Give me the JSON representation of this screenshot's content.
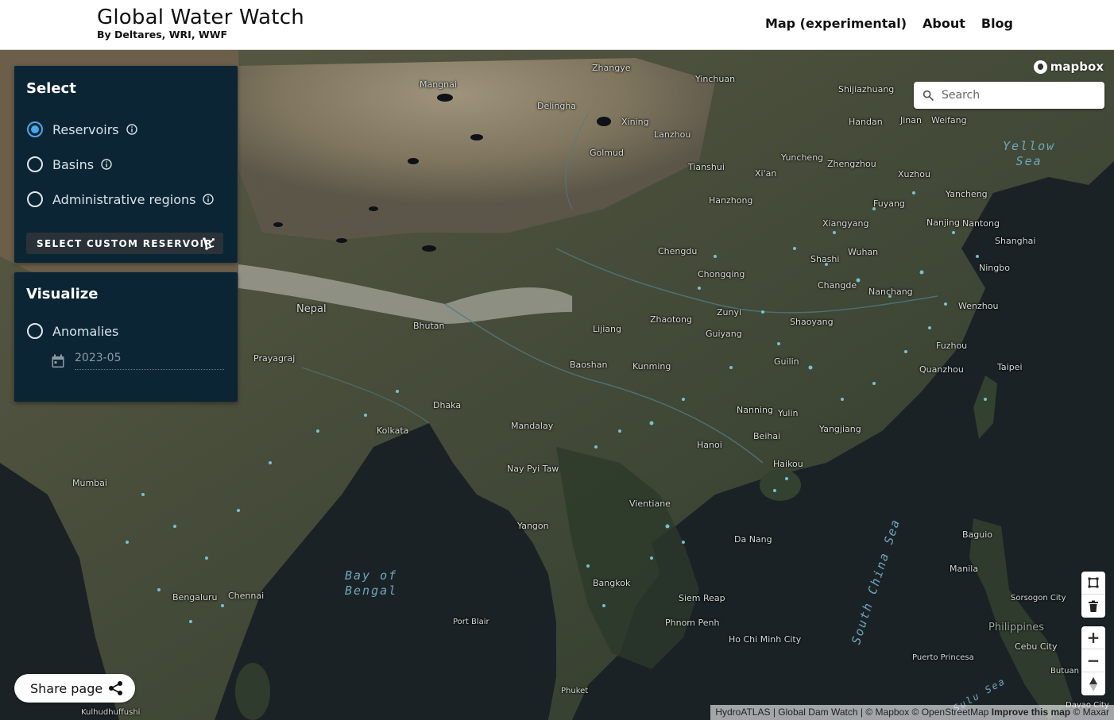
{
  "header": {
    "title": "Global Water Watch",
    "subtitle": "By Deltares, WRI, WWF",
    "nav": [
      {
        "label": "Map (experimental)"
      },
      {
        "label": "About"
      },
      {
        "label": "Blog"
      }
    ]
  },
  "map": {
    "logo_text": "mapbox",
    "search": {
      "placeholder": "Search",
      "value": ""
    },
    "places": [
      {
        "name": "Zhangye"
      },
      {
        "name": "Yinchuan"
      },
      {
        "name": "Mangnai"
      },
      {
        "name": "Delingha"
      },
      {
        "name": "Xining"
      },
      {
        "name": "Lanzhou"
      },
      {
        "name": "Shijiazhuang"
      },
      {
        "name": "Handan"
      },
      {
        "name": "Jinan"
      },
      {
        "name": "Weifang"
      },
      {
        "name": "Golmud"
      },
      {
        "name": "Tianshui"
      },
      {
        "name": "Xi'an"
      },
      {
        "name": "Yuncheng"
      },
      {
        "name": "Zhengzhou"
      },
      {
        "name": "Xuzhou"
      },
      {
        "name": "Hanzhong"
      },
      {
        "name": "Fuyang"
      },
      {
        "name": "Yancheng"
      },
      {
        "name": "Xiangyang"
      },
      {
        "name": "Nanjing"
      },
      {
        "name": "Nantong"
      },
      {
        "name": "Shanghai"
      },
      {
        "name": "Chengdu"
      },
      {
        "name": "Wuhan"
      },
      {
        "name": "Shashi"
      },
      {
        "name": "Chongqing"
      },
      {
        "name": "Ningbo"
      },
      {
        "name": "Changde"
      },
      {
        "name": "Nanchang"
      },
      {
        "name": "Nepal"
      },
      {
        "name": "Zhaotong"
      },
      {
        "name": "Zunyi"
      },
      {
        "name": "Wenzhou"
      },
      {
        "name": "Bhutan"
      },
      {
        "name": "Lijiang"
      },
      {
        "name": "Shaoyang"
      },
      {
        "name": "Guiyang"
      },
      {
        "name": "Fuzhou"
      },
      {
        "name": "Prayagraj"
      },
      {
        "name": "Baoshan"
      },
      {
        "name": "Kunming"
      },
      {
        "name": "Guilin"
      },
      {
        "name": "Quanzhou"
      },
      {
        "name": "Taipei"
      },
      {
        "name": "Dhaka"
      },
      {
        "name": "Nanning"
      },
      {
        "name": "Yulin"
      },
      {
        "name": "Kolkata"
      },
      {
        "name": "Mandalay"
      },
      {
        "name": "Beihai"
      },
      {
        "name": "Yangjiang"
      },
      {
        "name": "Hanoi"
      },
      {
        "name": "Haikou"
      },
      {
        "name": "Mumbai"
      },
      {
        "name": "Nay Pyi Taw"
      },
      {
        "name": "Vientiane"
      },
      {
        "name": "Yangon"
      },
      {
        "name": "Da Nang"
      },
      {
        "name": "Baguio"
      },
      {
        "name": "Manila"
      },
      {
        "name": "Bengaluru"
      },
      {
        "name": "Chennai"
      },
      {
        "name": "Bangkok"
      },
      {
        "name": "Siem Reap"
      },
      {
        "name": "Sorsogon City"
      },
      {
        "name": "Port Blair"
      },
      {
        "name": "Phnom Penh"
      },
      {
        "name": "Philippines"
      },
      {
        "name": "Ho Chi Minh City"
      },
      {
        "name": "Cebu City"
      },
      {
        "name": "Puerto Princesa"
      },
      {
        "name": "Butuan"
      },
      {
        "name": "Phuket"
      },
      {
        "name": "Kulhudhuffushi"
      },
      {
        "name": "Davao City"
      }
    ],
    "seas": [
      {
        "name": "Yellow\nSea"
      },
      {
        "name": "Bay of\nBengal"
      },
      {
        "name": "South China Sea"
      },
      {
        "name": "Sulu Sea"
      }
    ],
    "attribution": {
      "hydro": "HydroATLAS",
      "dam": "Global Dam Watch",
      "rest": "© Mapbox © OpenStreetMap",
      "improve": "Improve this map",
      "maxar": "© Maxar"
    }
  },
  "select_panel": {
    "title": "Select",
    "options": [
      {
        "label": "Reservoirs",
        "checked": true
      },
      {
        "label": "Basins",
        "checked": false
      },
      {
        "label": "Administrative regions",
        "checked": false
      }
    ],
    "custom_button": "SELECT CUSTOM RESERVOIR"
  },
  "visualize_panel": {
    "title": "Visualize",
    "option": {
      "label": "Anomalies",
      "checked": false
    },
    "date_value": "2023-05"
  },
  "share": {
    "label": "Share page"
  },
  "colors": {
    "panel_bg": "#0b2535",
    "accent": "#4aa8ea",
    "water": "#7fd6ec"
  }
}
